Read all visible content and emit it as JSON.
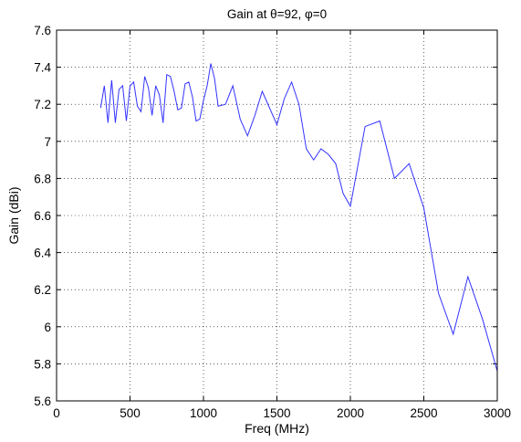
{
  "chart_data": {
    "type": "line",
    "title": "Gain at θ=92, φ=0",
    "xlabel": "Freq (MHz)",
    "ylabel": "Gain (dBi)",
    "xlim": [
      0,
      3000
    ],
    "ylim": [
      5.6,
      7.6
    ],
    "xticks": [
      0,
      500,
      1000,
      1500,
      2000,
      2500,
      3000
    ],
    "xtick_labels": [
      "0",
      "500",
      "1000",
      "1500",
      "2000",
      "2500",
      "3000"
    ],
    "yticks": [
      5.6,
      5.8,
      6.0,
      6.2,
      6.4,
      6.6,
      6.8,
      7.0,
      7.2,
      7.4,
      7.6
    ],
    "ytick_labels": [
      "5.6",
      "5.8",
      "6",
      "6.2",
      "6.4",
      "6.6",
      "6.8",
      "7",
      "7.2",
      "7.4",
      "7.6"
    ],
    "grid": true,
    "line_color": "#3333ff",
    "series": [
      {
        "x": [
          300,
          325,
          350,
          375,
          400,
          425,
          450,
          475,
          500,
          525,
          550,
          575,
          600,
          625,
          650,
          675,
          700,
          725,
          750,
          775,
          800,
          825,
          850,
          875,
          900,
          925,
          950,
          975,
          1000,
          1025,
          1050,
          1075,
          1100,
          1150,
          1200,
          1250,
          1300,
          1350,
          1400,
          1450,
          1500,
          1550,
          1600,
          1650,
          1700,
          1750,
          1800,
          1850,
          1900,
          1950,
          2000,
          2100,
          2200,
          2300,
          2400,
          2500,
          2600,
          2700,
          2800,
          2900,
          3000
        ],
        "values": [
          7.18,
          7.3,
          7.1,
          7.33,
          7.1,
          7.28,
          7.3,
          7.11,
          7.3,
          7.32,
          7.19,
          7.16,
          7.35,
          7.29,
          7.14,
          7.3,
          7.25,
          7.1,
          7.36,
          7.35,
          7.27,
          7.17,
          7.18,
          7.31,
          7.32,
          7.24,
          7.11,
          7.12,
          7.22,
          7.3,
          7.42,
          7.34,
          7.19,
          7.2,
          7.3,
          7.12,
          7.03,
          7.14,
          7.27,
          7.18,
          7.09,
          7.23,
          7.32,
          7.2,
          6.96,
          6.9,
          6.96,
          6.93,
          6.88,
          6.72,
          6.65,
          7.08,
          7.11,
          6.8,
          6.88,
          6.64,
          6.18,
          5.96,
          6.27,
          6.04,
          5.76
        ]
      }
    ]
  }
}
